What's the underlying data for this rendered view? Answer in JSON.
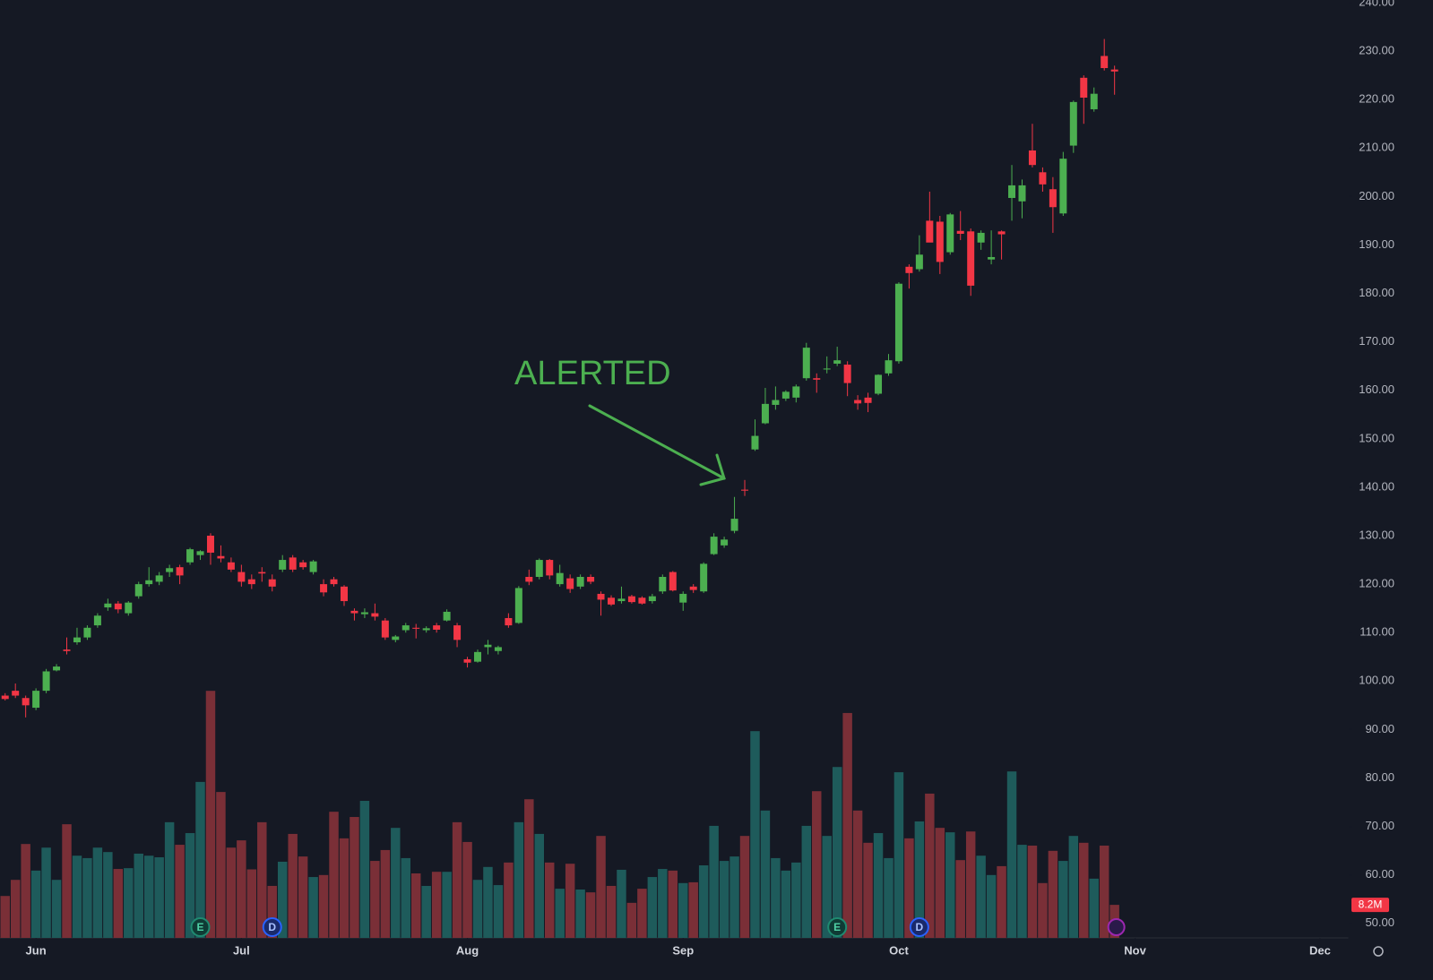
{
  "chart_data": {
    "type": "candlestick",
    "up_color": "#4caf50",
    "down_color": "#f23645",
    "volume_up_color": "#1e5b5b",
    "volume_down_color": "#7a2f37",
    "annotation": "ALERTED",
    "open": [
      97,
      98,
      96.5,
      94.5,
      98,
      102.2,
      106.5,
      108,
      109,
      111.5,
      115.2,
      116,
      114,
      117.5,
      120,
      120.5,
      122.5,
      123.5,
      124.5,
      126,
      130,
      125.8,
      124.5,
      122.5,
      121,
      122.5,
      121,
      123,
      125.5,
      124.5,
      122.5,
      120,
      121,
      119.5,
      114.5,
      113.8,
      114,
      112.5,
      108.5,
      110.5,
      111,
      110.5,
      111.5,
      112.5,
      111.5,
      104.5,
      104,
      107,
      106.2,
      113,
      112,
      121.5,
      121.5,
      125,
      120,
      121.2,
      119.5,
      121.5,
      118,
      117.2,
      116.5,
      117.5,
      117.2,
      116.5,
      118.5,
      122.5,
      116.2,
      119.5,
      118.5,
      126.2,
      128,
      131,
      139.5,
      147.8,
      153.2,
      157,
      158.3,
      158.5,
      162.5,
      162.5,
      164.3,
      165.5,
      165.3,
      158,
      158.5,
      159.3,
      163.5,
      166,
      185.5,
      185,
      195,
      194.8,
      188.5,
      192.9,
      192.8,
      190.5,
      187,
      192.8,
      199.7,
      199,
      209.5,
      205,
      201.5,
      196.5,
      210.5,
      224.5,
      218,
      229,
      226.2
    ],
    "high": [
      97.5,
      99.5,
      97,
      98.5,
      102.5,
      103.5,
      109,
      111,
      111.5,
      114,
      117,
      116.5,
      116.5,
      120.5,
      123.5,
      122.5,
      124,
      124,
      127.5,
      127,
      130.5,
      128,
      125.5,
      124,
      122,
      123.5,
      122,
      126,
      126,
      125,
      125,
      121,
      121.5,
      119.8,
      115,
      115,
      116,
      113,
      109.5,
      112,
      111.8,
      111.3,
      112,
      114.8,
      112,
      105,
      106.5,
      108.5,
      107.3,
      114,
      119.6,
      123,
      125.3,
      125.2,
      124,
      122,
      122,
      122,
      118.5,
      117.7,
      119.5,
      117.8,
      117.5,
      118,
      122,
      122.7,
      118.5,
      120,
      124.5,
      130.5,
      129.8,
      138,
      141.5,
      154,
      160.5,
      160.8,
      160,
      161.2,
      169.8,
      163.5,
      167,
      169,
      166,
      159,
      159.5,
      163.3,
      167.5,
      182.3,
      186,
      192,
      201,
      196,
      196.6,
      197,
      193.4,
      193,
      193,
      193,
      206.5,
      203.5,
      215,
      206,
      204,
      209.2,
      219.8,
      225,
      222.5,
      232.5,
      227
    ],
    "low": [
      96,
      96.5,
      92.5,
      94,
      97.5,
      102,
      105.5,
      107.5,
      108.5,
      111,
      114.5,
      114,
      113.5,
      117,
      119.5,
      119.8,
      121.5,
      120,
      124,
      125,
      124,
      124.5,
      122.5,
      119.5,
      119,
      120.5,
      118.5,
      122.5,
      122.5,
      123,
      122,
      117.5,
      119.5,
      115.5,
      112.5,
      113,
      112.5,
      108.5,
      108,
      110,
      108.8,
      110,
      110,
      112.3,
      107,
      102.8,
      103.8,
      105.5,
      105.5,
      111,
      111.8,
      119.8,
      121,
      121,
      119.5,
      118.2,
      119,
      120,
      113.5,
      115.5,
      116,
      116,
      115.8,
      116,
      118,
      118.5,
      114.5,
      118.2,
      118.2,
      126,
      127.5,
      130.5,
      138.2,
      147.5,
      153,
      156,
      157.8,
      157.5,
      162,
      159.5,
      163.5,
      165,
      158.8,
      156,
      155.5,
      159,
      163,
      165.5,
      181,
      184.5,
      191,
      184,
      188,
      191,
      179.5,
      189,
      186,
      187,
      195,
      195.5,
      206,
      201,
      192.5,
      196,
      209,
      215,
      217.5,
      226,
      221
    ],
    "close": [
      96.3,
      97,
      95,
      98,
      102,
      103,
      106.2,
      109,
      111,
      113.5,
      116,
      114.8,
      116.2,
      120,
      120.8,
      121.8,
      123.3,
      121.8,
      127.2,
      126.8,
      126.5,
      125.3,
      123,
      120.5,
      120,
      122.2,
      119.5,
      125,
      123,
      123.5,
      124.7,
      118.3,
      120,
      116.5,
      114,
      114.2,
      113.3,
      109,
      109.2,
      111.5,
      110.8,
      110.9,
      110.6,
      114.3,
      108.5,
      103.8,
      106,
      107.5,
      107,
      111.5,
      119.2,
      120.5,
      125,
      121.8,
      122.3,
      119,
      121.5,
      120.5,
      116.8,
      115.8,
      117,
      116.3,
      116,
      117.5,
      121.5,
      118.7,
      118,
      118.8,
      124.2,
      129.8,
      129.2,
      133.5,
      139.3,
      150.6,
      157.2,
      158,
      159.7,
      160.8,
      168.8,
      162.2,
      164.5,
      166.2,
      161.5,
      157.3,
      157.4,
      163.2,
      166.2,
      182,
      184.2,
      188,
      190.5,
      186.5,
      196.3,
      192.3,
      181.6,
      192.5,
      187.5,
      192.2,
      202.3,
      202.3,
      206.5,
      202.5,
      197.8,
      207.8,
      219.5,
      220.4,
      221.2,
      226.5,
      225.8
    ],
    "volume": [
      10.4,
      14.4,
      23.3,
      16.7,
      22.4,
      14.4,
      28.2,
      20.4,
      19.8,
      22.4,
      21.3,
      17.1,
      17.3,
      20.9,
      20.4,
      20,
      28.7,
      23.1,
      26,
      38.7,
      61.3,
      36.2,
      22.4,
      24.2,
      17,
      28.7,
      12.9,
      18.9,
      25.8,
      20.2,
      15.1,
      15.6,
      31.3,
      24.7,
      30,
      34,
      19.1,
      21.8,
      27.3,
      19.8,
      16,
      12.9,
      16.4,
      16.4,
      28.7,
      23.8,
      14.4,
      17.6,
      13.1,
      18.7,
      28.7,
      34.4,
      25.8,
      18.7,
      12.2,
      18.4,
      12,
      11.3,
      25.3,
      12.9,
      16.9,
      8.7,
      12.2,
      15.1,
      17.1,
      16.7,
      13.6,
      13.8,
      18,
      27.8,
      19.1,
      20.2,
      25.3,
      51.3,
      31.6,
      19.8,
      16.7,
      18.7,
      27.8,
      36.4,
      25.3,
      42.4,
      55.8,
      31.6,
      23.6,
      26,
      19.8,
      41.1,
      24.7,
      28.9,
      35.8,
      27.3,
      26.2,
      19.3,
      26.4,
      20.4,
      15.6,
      17.8,
      41.3,
      23.1,
      22.9,
      13.6,
      21.6,
      19.1,
      25.3,
      23.6,
      14.7,
      22.9,
      8.2
    ],
    "last_volume_label": "8.2M",
    "volume_ylim": [
      0,
      232.7
    ],
    "events": [
      {
        "x": 19,
        "label": "E"
      },
      {
        "x": 26,
        "label": "D"
      },
      {
        "x": 81,
        "label": "E"
      },
      {
        "x": 89,
        "label": "D"
      }
    ],
    "xlim": [
      -0.5,
      130.8
    ],
    "xticks": [
      {
        "value": 3,
        "label": "Jun"
      },
      {
        "value": 23,
        "label": "Jul"
      },
      {
        "value": 45,
        "label": "Aug"
      },
      {
        "value": 66,
        "label": "Sep"
      },
      {
        "value": 87,
        "label": "Oct"
      },
      {
        "value": 110,
        "label": "Nov"
      },
      {
        "value": 128,
        "label": "Dec"
      }
    ],
    "ylim": [
      47,
      240.55
    ],
    "yticks": [
      {
        "value": 50,
        "label": "50.00"
      },
      {
        "value": 60,
        "label": "60.00"
      },
      {
        "value": 70,
        "label": "70.00"
      },
      {
        "value": 80,
        "label": "80.00"
      },
      {
        "value": 90,
        "label": "90.00"
      },
      {
        "value": 100,
        "label": "100.00"
      },
      {
        "value": 110,
        "label": "110.00"
      },
      {
        "value": 120,
        "label": "120.00"
      },
      {
        "value": 130,
        "label": "130.00"
      },
      {
        "value": 140,
        "label": "140.00"
      },
      {
        "value": 150,
        "label": "150.00"
      },
      {
        "value": 160,
        "label": "160.00"
      },
      {
        "value": 170,
        "label": "170.00"
      },
      {
        "value": 180,
        "label": "180.00"
      },
      {
        "value": 190,
        "label": "190.00"
      },
      {
        "value": 200,
        "label": "200.00"
      },
      {
        "value": 210,
        "label": "210.00"
      },
      {
        "value": 220,
        "label": "220.00"
      },
      {
        "value": 230,
        "label": "230.00"
      },
      {
        "value": 240,
        "label": "240.00"
      }
    ],
    "grid": false
  }
}
